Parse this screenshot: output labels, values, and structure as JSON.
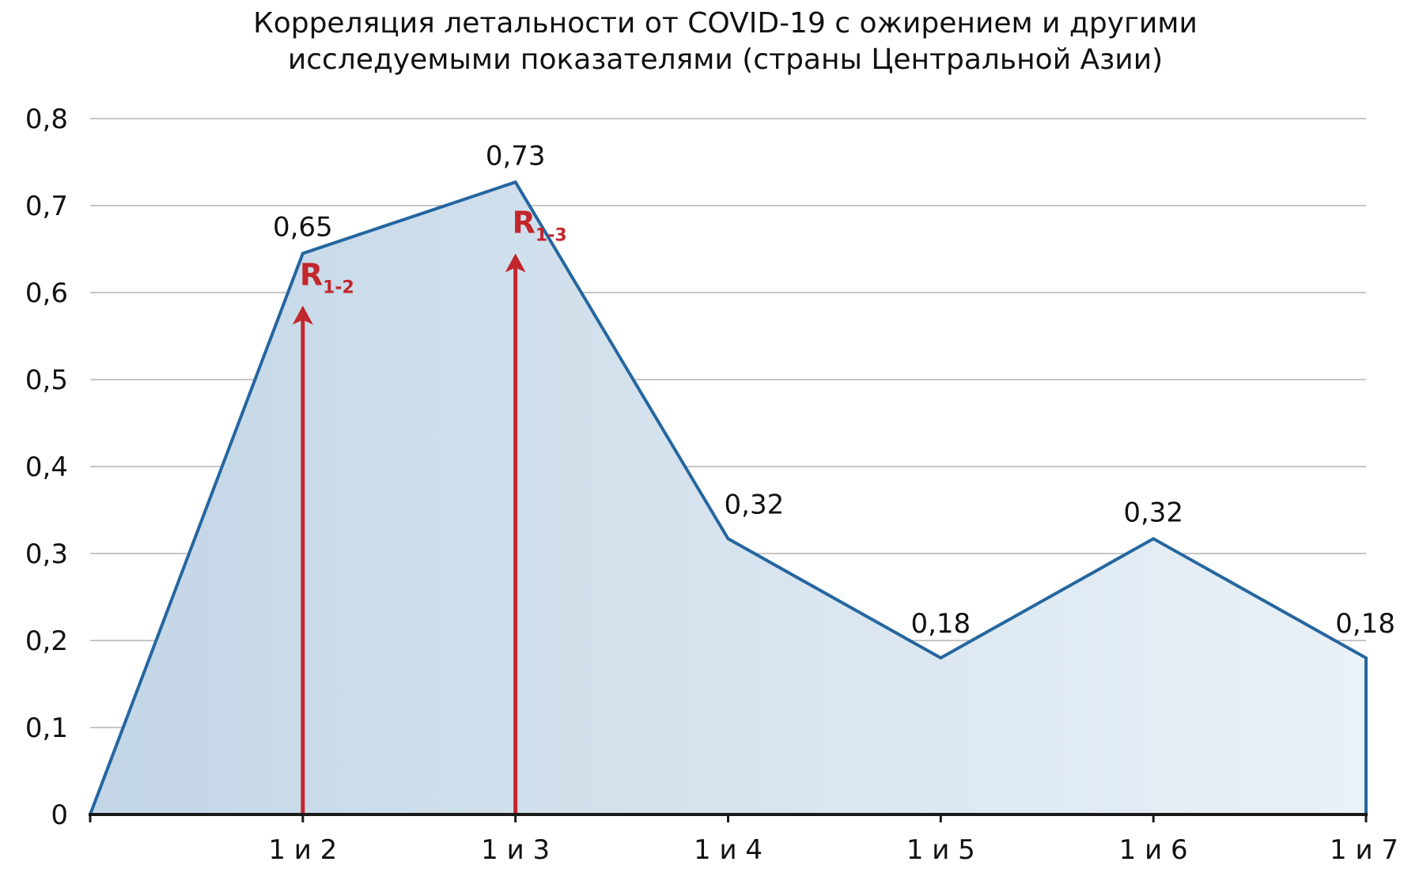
{
  "chart_data": {
    "type": "area",
    "title_lines": [
      "Корреляция летальности от COVID-19 с ожирением и другими",
      "исследуемыми показателями (страны Центральной Азии)"
    ],
    "xlabel": "",
    "ylabel": "",
    "ylim": [
      0,
      0.8
    ],
    "y_ticks": [
      {
        "value": 0,
        "label": "0"
      },
      {
        "value": 0.1,
        "label": "0,1"
      },
      {
        "value": 0.2,
        "label": "0,2"
      },
      {
        "value": 0.3,
        "label": "0,3"
      },
      {
        "value": 0.4,
        "label": "0,4"
      },
      {
        "value": 0.5,
        "label": "0,5"
      },
      {
        "value": 0.6,
        "label": "0,6"
      },
      {
        "value": 0.7,
        "label": "0,7"
      },
      {
        "value": 0.8,
        "label": "0,8"
      }
    ],
    "categories": [
      "",
      "1 и 2",
      "1 и 3",
      "1 и 4",
      "1 и 5",
      "1 и 6",
      "1 и 7"
    ],
    "values": [
      0,
      0.645,
      0.727,
      0.317,
      0.18,
      0.317,
      0.18
    ],
    "data_labels": [
      "",
      "0,65",
      "0,73",
      "0,32",
      "0,18",
      "0,32",
      "0,18"
    ],
    "grid": true,
    "colors": {
      "line": "#2566a0",
      "fill_dark": "#c3d6e6",
      "fill_light": "#eaf1f7",
      "grid": "#b3b3b3",
      "axis": "#1a1a1a",
      "annotation": "#c1272d"
    },
    "annotations": [
      {
        "category": "1 и 2",
        "arrow_to": 0.585,
        "label_main": "R",
        "label_sub": "1-2"
      },
      {
        "category": "1 и 3",
        "arrow_to": 0.645,
        "label_main": "R",
        "label_sub": "1-3"
      }
    ]
  }
}
